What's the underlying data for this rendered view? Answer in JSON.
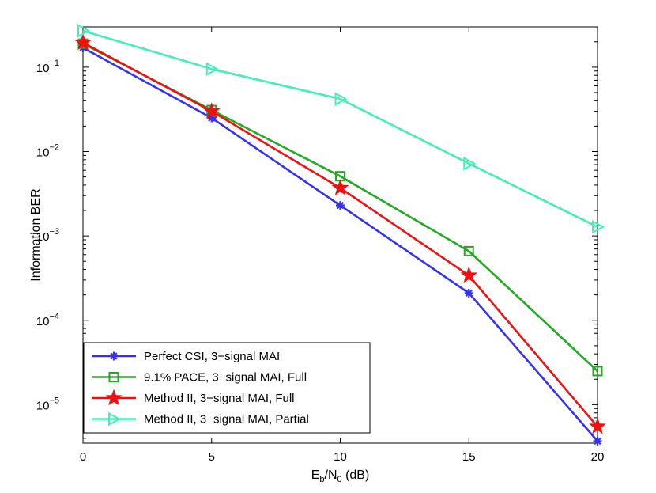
{
  "chart_data": {
    "type": "line",
    "title": "",
    "xlabel": {
      "main": "E",
      "sub1": "b",
      "mid": "/N",
      "sub2": "0",
      "tail": " (dB)"
    },
    "ylabel": "Information BER",
    "xlim": [
      0,
      20
    ],
    "ylim": [
      3.5e-06,
      0.3
    ],
    "yscale": "log",
    "grid": false,
    "legend_position": "bottom-left",
    "x_ticks": [
      {
        "value": 0,
        "label": "0"
      },
      {
        "value": 5,
        "label": "5"
      },
      {
        "value": 10,
        "label": "10"
      },
      {
        "value": 15,
        "label": "15"
      },
      {
        "value": 20,
        "label": "20"
      }
    ],
    "y_ticks": [
      {
        "value": 1e-05,
        "base": "10",
        "exp": "−5"
      },
      {
        "value": 0.0001,
        "base": "10",
        "exp": "−4"
      },
      {
        "value": 0.001,
        "base": "10",
        "exp": "−3"
      },
      {
        "value": 0.01,
        "base": "10",
        "exp": "−2"
      },
      {
        "value": 0.1,
        "base": "10",
        "exp": "−1"
      }
    ],
    "x": [
      0,
      5,
      10,
      15,
      20
    ],
    "series": [
      {
        "name": "Perfect CSI, 3−signal MAI",
        "color": "#3333ee",
        "marker": "asterisk",
        "values": [
          0.17,
          0.025,
          0.0023,
          0.00021,
          3.7e-06
        ]
      },
      {
        "name": "9.1% PACE, 3−signal MAI, Full",
        "color": "#22aa22",
        "marker": "square",
        "values": [
          0.19,
          0.031,
          0.0051,
          0.00066,
          2.5e-05
        ]
      },
      {
        "name": "Method II, 3−signal MAI, Full",
        "color": "#ee1111",
        "marker": "star",
        "values": [
          0.195,
          0.03,
          0.0037,
          0.00034,
          5.5e-06
        ]
      },
      {
        "name": "Method II, 3−signal MAI, Partial",
        "color": "#44eebb",
        "marker": "triangle-right",
        "values": [
          0.27,
          0.095,
          0.042,
          0.0072,
          0.00128
        ]
      }
    ]
  }
}
